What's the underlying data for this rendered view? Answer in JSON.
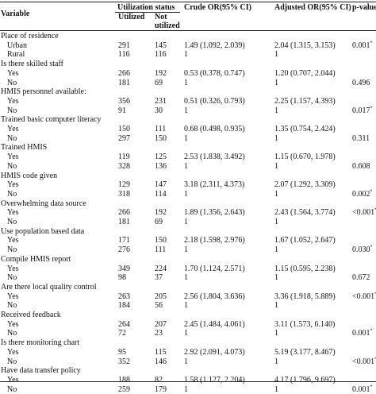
{
  "header": {
    "variable": "Variable",
    "utilization_status": "Utilization status",
    "utilized": "Utilized",
    "not_utilized_1": "Not",
    "not_utilized_2": "utilized",
    "crude_or": "Crude OR(95% CI)",
    "adjusted_or": "Adjusted OR(95% CI)",
    "p_value": "p-value"
  },
  "sections": [
    {
      "title": "Place of residence",
      "rows": [
        {
          "label": "Urban",
          "utilized": "291",
          "not_utilized": "145",
          "crude": "1.49 (1.092, 2.039)",
          "adjusted": "2.04 (1.315, 3.153)",
          "p": "0.001",
          "p_mark": "*"
        },
        {
          "label": "Rural",
          "utilized": "116",
          "not_utilized": "116",
          "crude": "1",
          "adjusted": "1",
          "p": "",
          "p_mark": ""
        }
      ]
    },
    {
      "title": "Is there skilled staff",
      "rows": [
        {
          "label": "Yes",
          "utilized": "266",
          "not_utilized": "192",
          "crude": "0.53 (0.378, 0.747)",
          "adjusted": "1.20 (0.707, 2.044)",
          "p": "",
          "p_mark": ""
        },
        {
          "label": "No",
          "utilized": "181",
          "not_utilized": "69",
          "crude": "1",
          "adjusted": "1",
          "p": "0.496",
          "p_mark": ""
        }
      ]
    },
    {
      "title": "HMIS personnel available:",
      "rows": [
        {
          "label": "Yes",
          "utilized": "356",
          "not_utilized": "231",
          "crude": "0.51 (0.326, 0.793)",
          "adjusted": "2.25 (1.157, 4.393)",
          "p": "",
          "p_mark": ""
        },
        {
          "label": "No",
          "utilized": "91",
          "not_utilized": "30",
          "crude": "1",
          "adjusted": "1",
          "p": "0.017",
          "p_mark": "*"
        }
      ]
    },
    {
      "title": "Trained basic computer literacy",
      "rows": [
        {
          "label": "Yes",
          "utilized": "150",
          "not_utilized": "111",
          "crude": "0.68 (0.498, 0.935)",
          "adjusted": "1.35 (0.754, 2.424)",
          "p": "",
          "p_mark": ""
        },
        {
          "label": "No",
          "utilized": "297",
          "not_utilized": "150",
          "crude": "1",
          "adjusted": "1",
          "p": "0.311",
          "p_mark": ""
        }
      ]
    },
    {
      "title": "Trained HMIS",
      "rows": [
        {
          "label": "Yes",
          "utilized": "119",
          "not_utilized": "125",
          "crude": "2.53 (1.838, 3.492)",
          "adjusted": "1.15 (0.670, 1.978)",
          "p": "",
          "p_mark": ""
        },
        {
          "label": "No",
          "utilized": "328",
          "not_utilized": "136",
          "crude": "1",
          "adjusted": "1",
          "p": "0.608",
          "p_mark": ""
        }
      ]
    },
    {
      "title": "HMIS code given",
      "rows": [
        {
          "label": "Yes",
          "utilized": "129",
          "not_utilized": "147",
          "crude": "3.18 (2.311, 4.373)",
          "adjusted": "2.07 (1.292, 3.309)",
          "p": "",
          "p_mark": ""
        },
        {
          "label": "No",
          "utilized": "318",
          "not_utilized": "114",
          "crude": "1",
          "adjusted": "1",
          "p": "0.002",
          "p_mark": "*"
        }
      ]
    },
    {
      "title": "Overwhelming data source",
      "rows": [
        {
          "label": "Yes",
          "utilized": "266",
          "not_utilized": "192",
          "crude": "1.89 (1.356, 2.643)",
          "adjusted": "2.43 (1.564, 3.774)",
          "p": "<0.001",
          "p_mark": "*"
        },
        {
          "label": "No",
          "utilized": "181",
          "not_utilized": "69",
          "crude": "1",
          "adjusted": "1",
          "p": "",
          "p_mark": ""
        }
      ]
    },
    {
      "title": "Use population based data",
      "rows": [
        {
          "label": "Yes",
          "utilized": "171",
          "not_utilized": "150",
          "crude": "2.18 (1.598, 2.976)",
          "adjusted": "1.67 (1.052, 2.647)",
          "p": "",
          "p_mark": ""
        },
        {
          "label": "No",
          "utilized": "276",
          "not_utilized": "111",
          "crude": "1",
          "adjusted": "1",
          "p": "0.030",
          "p_mark": "*"
        }
      ]
    },
    {
      "title": "Compile HMIS report",
      "rows": [
        {
          "label": "Yes",
          "utilized": "349",
          "not_utilized": "224",
          "crude": "1.70 (1.124, 2.571)",
          "adjusted": "1.15 (0.595, 2.238)",
          "p": "",
          "p_mark": ""
        },
        {
          "label": "No",
          "utilized": "98",
          "not_utilized": "37",
          "crude": "1",
          "adjusted": "1",
          "p": "0.672",
          "p_mark": ""
        }
      ]
    },
    {
      "title": "Are there local quality control",
      "rows": [
        {
          "label": "Yes",
          "utilized": "263",
          "not_utilized": "205",
          "crude": "2.56 (1.804, 3.636)",
          "adjusted": "3.36 (1.918, 5.889)",
          "p": "<0.001",
          "p_mark": "*"
        },
        {
          "label": "No",
          "utilized": "184",
          "not_utilized": "56",
          "crude": "1",
          "adjusted": "1",
          "p": "",
          "p_mark": ""
        }
      ]
    },
    {
      "title": "Received feedback",
      "rows": [
        {
          "label": "Yes",
          "utilized": "264",
          "not_utilized": "207",
          "crude": "2.45 (1.484, 4.061)",
          "adjusted": "3.11 (1.573, 6.140)",
          "p": "",
          "p_mark": ""
        },
        {
          "label": "No",
          "utilized": "72",
          "not_utilized": "23",
          "crude": "1",
          "adjusted": "1",
          "p": "0.001",
          "p_mark": "*"
        }
      ]
    },
    {
      "title": "Is there monitoring chart",
      "rows": [
        {
          "label": "Yes",
          "utilized": "95",
          "not_utilized": "115",
          "crude": "2.92 (2.091, 4.073)",
          "adjusted": "5.19 (3.177, 8.467)",
          "p": "",
          "p_mark": ""
        },
        {
          "label": "No",
          "utilized": "352",
          "not_utilized": "146",
          "crude": "1",
          "adjusted": "1",
          "p": "<0.001",
          "p_mark": "*"
        }
      ]
    },
    {
      "title": "Have data transfer policy",
      "rows": [
        {
          "label": "Yes",
          "utilized": "188",
          "not_utilized": "82",
          "crude": "1.58 (1.127, 2.204)",
          "adjusted": "4.17 (1.796, 9.697)",
          "p": "",
          "p_mark": ""
        },
        {
          "label": "No",
          "utilized": "259",
          "not_utilized": "179",
          "crude": "1",
          "adjusted": "1",
          "p": "0.001",
          "p_mark": "*"
        }
      ]
    }
  ]
}
